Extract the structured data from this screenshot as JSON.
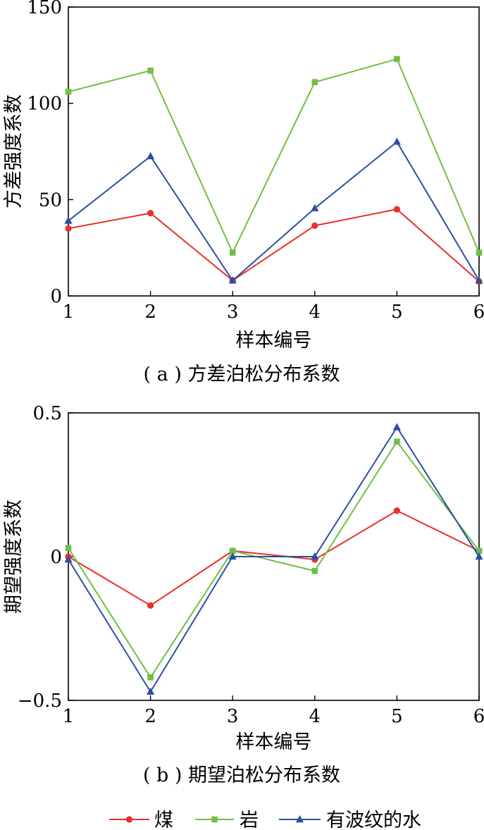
{
  "chart_data": [
    {
      "type": "line",
      "caption": "( a ) 方差泊松分布系数",
      "xlabel": "样本编号",
      "ylabel": "方差强度系数",
      "x": [
        1,
        2,
        3,
        4,
        5,
        6
      ],
      "x_ticks": [
        "1",
        "2",
        "3",
        "4",
        "5",
        "6"
      ],
      "y_ticks": [
        "0",
        "50",
        "100",
        "150"
      ],
      "ylim": [
        0,
        150
      ],
      "xlim": [
        1,
        6
      ],
      "grid": false,
      "series": [
        {
          "name": "煤",
          "values": [
            35,
            43,
            8,
            36.5,
            45,
            7.5
          ]
        },
        {
          "name": "岩",
          "values": [
            106,
            117,
            22.5,
            111,
            123,
            22.5
          ]
        },
        {
          "name": "有波纹的水",
          "values": [
            39,
            72.5,
            8,
            45.5,
            80,
            8
          ]
        }
      ]
    },
    {
      "type": "line",
      "caption": "( b ) 期望泊松分布系数",
      "xlabel": "样本编号",
      "ylabel": "期望强度系数",
      "x": [
        1,
        2,
        3,
        4,
        5,
        6
      ],
      "x_ticks": [
        "1",
        "2",
        "3",
        "4",
        "5",
        "6"
      ],
      "y_ticks": [
        "−0.5",
        "0",
        "0.5"
      ],
      "ylim": [
        -0.5,
        0.5
      ],
      "xlim": [
        1,
        6
      ],
      "grid": false,
      "series": [
        {
          "name": "煤",
          "values": [
            0.0,
            -0.17,
            0.02,
            -0.01,
            0.16,
            0.02
          ]
        },
        {
          "name": "岩",
          "values": [
            0.03,
            -0.42,
            0.02,
            -0.05,
            0.4,
            0.02
          ]
        },
        {
          "name": "有波纹的水",
          "values": [
            -0.01,
            -0.47,
            0.0,
            0.0,
            0.45,
            0.0
          ]
        }
      ]
    }
  ],
  "legend": {
    "placement": "bottom",
    "items": [
      {
        "label": "煤",
        "color": "#e8312a",
        "marker": "circle"
      },
      {
        "label": "岩",
        "color": "#71bf44",
        "marker": "square"
      },
      {
        "label": "有波纹的水",
        "color": "#2b4fa2",
        "marker": "triangle"
      }
    ]
  }
}
